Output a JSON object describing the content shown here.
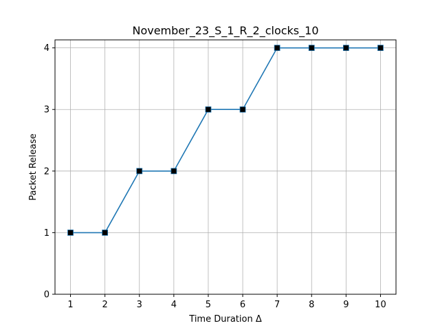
{
  "chart_data": {
    "type": "line",
    "title": "November_23_S_1_R_2_clocks_10",
    "xlabel": "Time Duration Δ",
    "ylabel": "Packet Release",
    "x": [
      1,
      2,
      3,
      4,
      5,
      6,
      7,
      8,
      9,
      10
    ],
    "series": [
      {
        "values": [
          1,
          1,
          2,
          2,
          3,
          3,
          4,
          4,
          4,
          4
        ]
      }
    ],
    "xlim": [
      0.55,
      10.45
    ],
    "ylim": [
      0,
      4.13
    ],
    "xticks": [
      "1",
      "2",
      "3",
      "4",
      "5",
      "6",
      "7",
      "8",
      "9",
      "10"
    ],
    "yticks": [
      "0",
      "1",
      "2",
      "3",
      "4"
    ],
    "grid": true,
    "line_color": "#1f77b4",
    "marker": "square",
    "marker_color": "#000000"
  }
}
